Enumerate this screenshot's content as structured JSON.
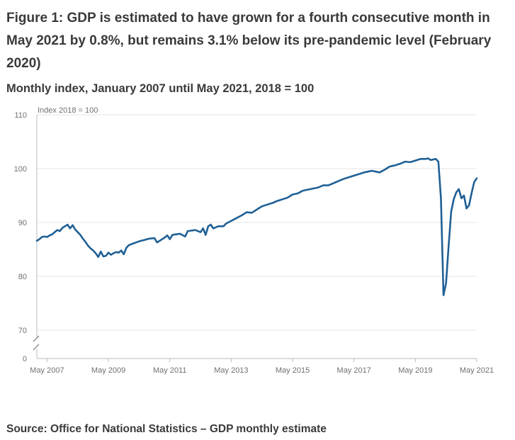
{
  "title": "Figure 1: GDP is estimated to have grown for a fourth consecutive month in May 2021 by 0.8%, but remains 3.1% below its pre-pandemic level (February 2020)",
  "subtitle": "Monthly index, January 2007 until May 2021, 2018 = 100",
  "source": "Source: Office for National Statistics – GDP monthly estimate",
  "colors": {
    "line": "#206095",
    "grid": "#e5e5e5",
    "axis": "#bbbbbb"
  },
  "chart_data": {
    "type": "line",
    "title": "Monthly index, January 2007 until May 2021, 2018 = 100",
    "ylabel": "Index 2018 = 100",
    "xlabel": "",
    "ylim": [
      70,
      110
    ],
    "yticks": [
      70,
      80,
      90,
      100,
      110
    ],
    "y_zero_label": "0",
    "axis_break": true,
    "xtick_labels": [
      "May 2007",
      "May 2009",
      "May 2011",
      "May 2013",
      "May 2015",
      "May 2017",
      "May 2019",
      "May 2021"
    ],
    "xtick_indices": [
      4,
      28,
      52,
      76,
      100,
      124,
      148,
      172
    ],
    "start": "January 2007",
    "end": "May 2021",
    "series": [
      {
        "name": "GDP monthly index",
        "anchors": [
          [
            0,
            86.6
          ],
          [
            1,
            86.9
          ],
          [
            2,
            87.3
          ],
          [
            3,
            87.4
          ],
          [
            4,
            87.3
          ],
          [
            5,
            87.6
          ],
          [
            6,
            87.8
          ],
          [
            7,
            88.2
          ],
          [
            8,
            88.6
          ],
          [
            9,
            88.4
          ],
          [
            10,
            89.0
          ],
          [
            11,
            89.3
          ],
          [
            12,
            89.6
          ],
          [
            13,
            88.9
          ],
          [
            14,
            89.5
          ],
          [
            15,
            88.7
          ],
          [
            16,
            88.2
          ],
          [
            17,
            87.7
          ],
          [
            18,
            87.0
          ],
          [
            19,
            86.4
          ],
          [
            20,
            85.7
          ],
          [
            21,
            85.2
          ],
          [
            22,
            84.8
          ],
          [
            23,
            84.3
          ],
          [
            24,
            83.6
          ],
          [
            25,
            84.6
          ],
          [
            26,
            83.7
          ],
          [
            27,
            83.8
          ],
          [
            28,
            84.4
          ],
          [
            29,
            84.0
          ],
          [
            30,
            84.3
          ],
          [
            31,
            84.5
          ],
          [
            32,
            84.4
          ],
          [
            33,
            84.8
          ],
          [
            34,
            84.1
          ],
          [
            35,
            85.3
          ],
          [
            36,
            85.8
          ],
          [
            40,
            86.5
          ],
          [
            44,
            87.0
          ],
          [
            46,
            87.1
          ],
          [
            47,
            86.3
          ],
          [
            50,
            87.2
          ],
          [
            51,
            87.6
          ],
          [
            52,
            86.9
          ],
          [
            53,
            87.7
          ],
          [
            56,
            87.9
          ],
          [
            58,
            87.4
          ],
          [
            59,
            88.4
          ],
          [
            62,
            88.6
          ],
          [
            64,
            88.2
          ],
          [
            65,
            88.9
          ],
          [
            66,
            87.7
          ],
          [
            67,
            89.3
          ],
          [
            68,
            89.6
          ],
          [
            69,
            88.9
          ],
          [
            71,
            89.3
          ],
          [
            73,
            89.3
          ],
          [
            74,
            89.8
          ],
          [
            76,
            90.3
          ],
          [
            80,
            91.3
          ],
          [
            82,
            91.9
          ],
          [
            84,
            91.8
          ],
          [
            86,
            92.4
          ],
          [
            88,
            93.0
          ],
          [
            92,
            93.6
          ],
          [
            94,
            94.0
          ],
          [
            98,
            94.6
          ],
          [
            100,
            95.2
          ],
          [
            102,
            95.4
          ],
          [
            104,
            95.9
          ],
          [
            108,
            96.3
          ],
          [
            110,
            96.5
          ],
          [
            112,
            96.9
          ],
          [
            114,
            96.9
          ],
          [
            118,
            97.7
          ],
          [
            120,
            98.1
          ],
          [
            124,
            98.7
          ],
          [
            128,
            99.3
          ],
          [
            131,
            99.6
          ],
          [
            134,
            99.3
          ],
          [
            136,
            99.8
          ],
          [
            138,
            100.4
          ],
          [
            140,
            100.6
          ],
          [
            142,
            100.9
          ],
          [
            144,
            101.3
          ],
          [
            146,
            101.2
          ],
          [
            148,
            101.5
          ],
          [
            150,
            101.8
          ],
          [
            152,
            101.8
          ],
          [
            153,
            101.9
          ],
          [
            154,
            101.6
          ],
          [
            155,
            101.7
          ],
          [
            156,
            101.8
          ],
          [
            157,
            101.3
          ],
          [
            158,
            94.5
          ],
          [
            159,
            76.5
          ],
          [
            160,
            78.7
          ],
          [
            161,
            85.6
          ],
          [
            162,
            92.0
          ],
          [
            163,
            94.3
          ],
          [
            164,
            95.6
          ],
          [
            165,
            96.2
          ],
          [
            166,
            94.5
          ],
          [
            167,
            95.0
          ],
          [
            168,
            92.6
          ],
          [
            169,
            93.2
          ],
          [
            170,
            95.5
          ],
          [
            171,
            97.5
          ],
          [
            172,
            98.2
          ]
        ]
      }
    ]
  }
}
